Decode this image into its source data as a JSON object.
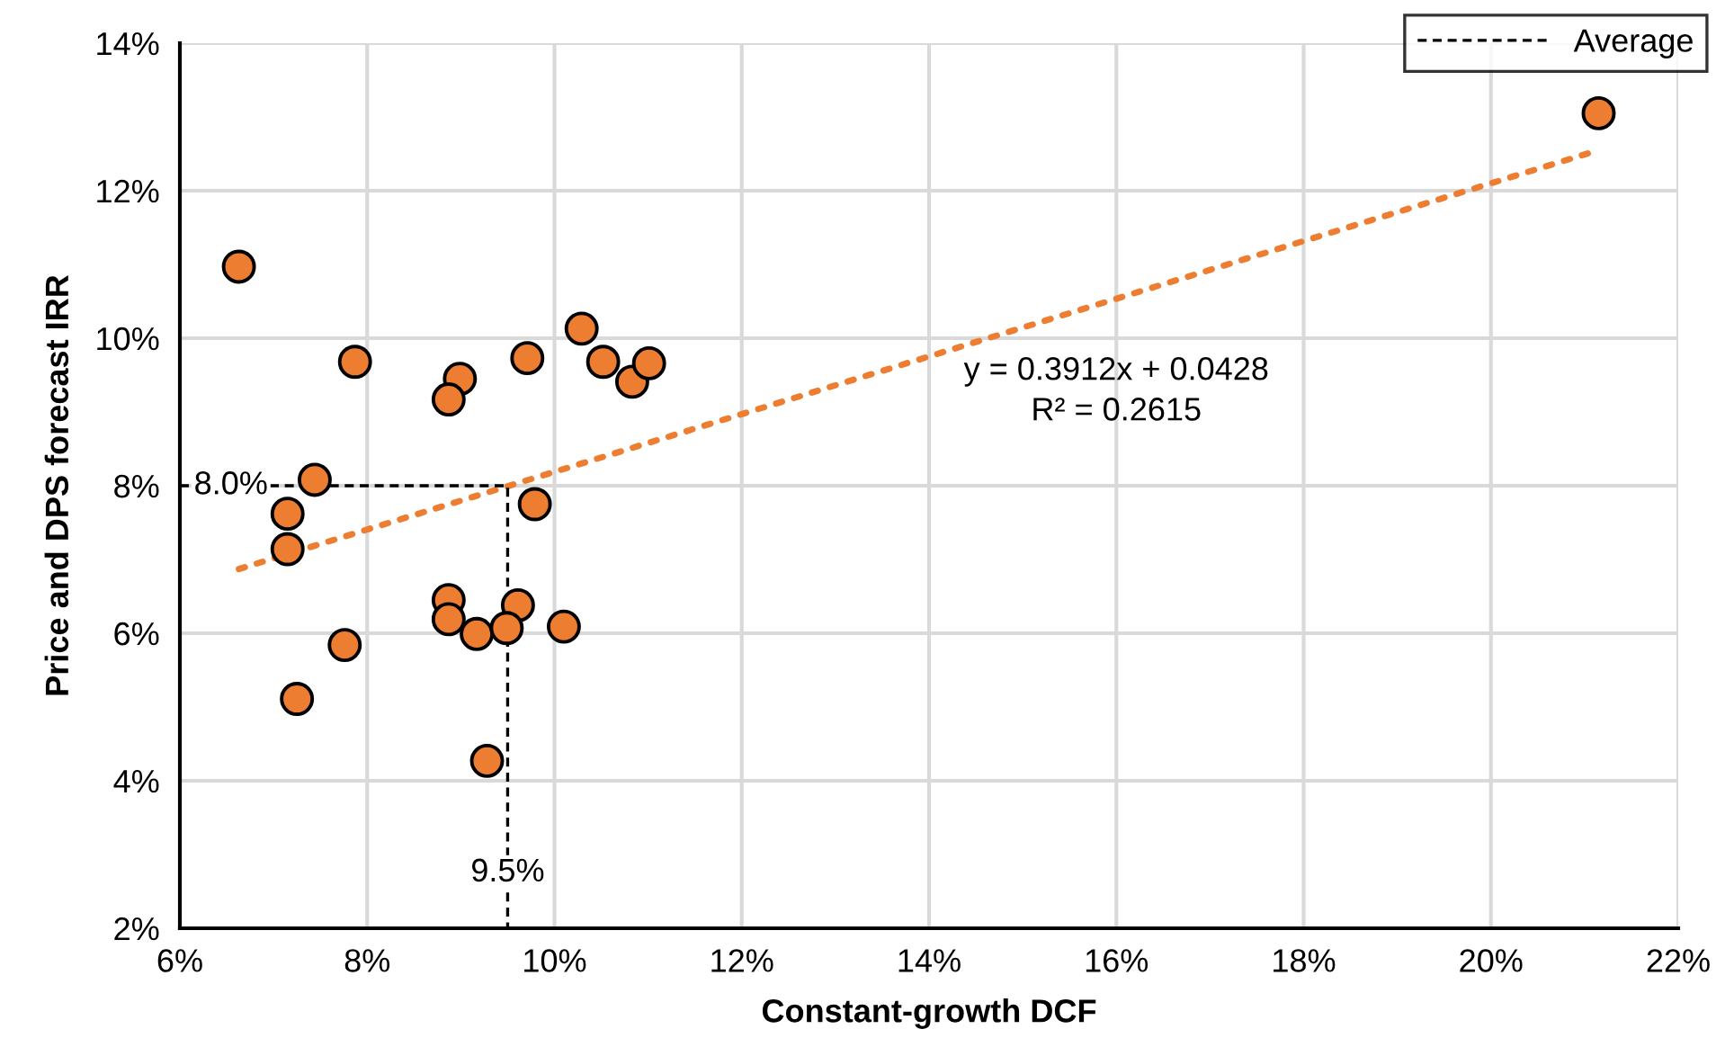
{
  "chart_data": {
    "type": "scatter",
    "xlabel": "Constant-growth DCF",
    "ylabel": "Price and DPS forecast IRR",
    "series": [
      {
        "color": "#ed7d31",
        "marker": "circle",
        "x": [
          6.63,
          7.87,
          8.99,
          8.87,
          9.71,
          10.29,
          10.52,
          10.83,
          11.01,
          7.44,
          7.15,
          7.15,
          9.79,
          8.87,
          8.87,
          9.17,
          9.61,
          9.49,
          10.1,
          7.76,
          7.25,
          9.28,
          21.15
        ],
        "values": [
          10.97,
          9.68,
          9.45,
          9.17,
          9.73,
          10.13,
          9.68,
          9.41,
          9.66,
          8.08,
          7.62,
          7.14,
          7.75,
          6.45,
          6.19,
          5.99,
          6.38,
          6.07,
          6.09,
          5.84,
          5.11,
          4.27,
          13.05
        ]
      },
      {
        "type": "line",
        "color": "#ed7d31",
        "line_style": "dotted",
        "marker": "none",
        "x": [
          6.63,
          21.15
        ],
        "values": [
          6.87,
          12.55
        ]
      },
      {
        "type": "line",
        "name": "Average",
        "color": "#000000",
        "line_style": "dashed",
        "marker": "none",
        "x": [
          6,
          9.5,
          9.5
        ],
        "values": [
          8,
          8,
          2
        ]
      }
    ],
    "annotations": [
      {
        "text": "8.0%",
        "x": 6.15,
        "y": 8.0
      },
      {
        "text": "9.5%",
        "x": 9.5,
        "y": 2.75
      },
      "y = 0.3912x + 0.0428",
      "R² = 0.2615"
    ],
    "xlim": [
      6,
      22
    ],
    "ylim": [
      2,
      14
    ],
    "xticks": [
      {
        "value": 6,
        "label": "6%"
      },
      {
        "value": 8,
        "label": "8%"
      },
      {
        "value": 10,
        "label": "10%"
      },
      {
        "value": 12,
        "label": "12%"
      },
      {
        "value": 14,
        "label": "14%"
      },
      {
        "value": 16,
        "label": "16%"
      },
      {
        "value": 18,
        "label": "18%"
      },
      {
        "value": 20,
        "label": "20%"
      },
      {
        "value": 22,
        "label": "22%"
      }
    ],
    "yticks": [
      {
        "value": 2,
        "label": "2%"
      },
      {
        "value": 4,
        "label": "4%"
      },
      {
        "value": 6,
        "label": "6%"
      },
      {
        "value": 8,
        "label": "8%"
      },
      {
        "value": 10,
        "label": "10%"
      },
      {
        "value": 12,
        "label": "12%"
      },
      {
        "value": 14,
        "label": "14%"
      }
    ],
    "grid": true,
    "legend": "top right"
  }
}
